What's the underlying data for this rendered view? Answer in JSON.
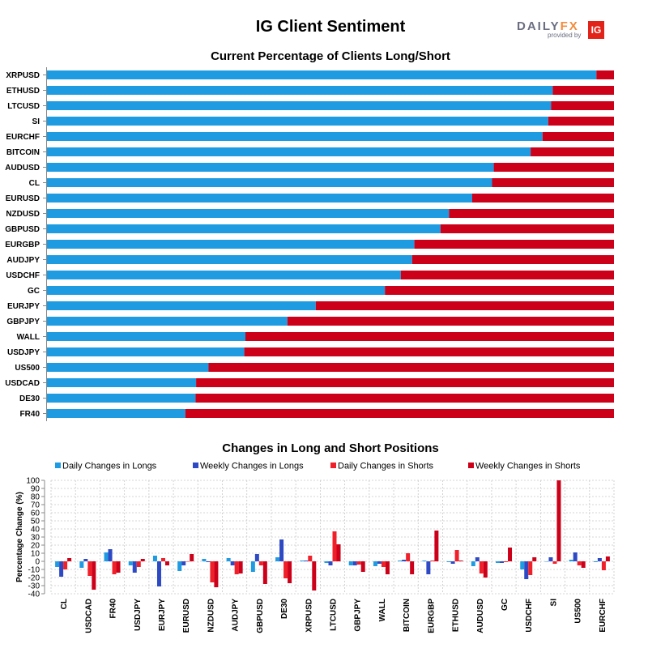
{
  "header": {
    "title": "IG Client Sentiment",
    "logo_main": "DAILY",
    "logo_accent": "FX",
    "logo_sub": "provided by",
    "logo_box": "IG"
  },
  "colors": {
    "long": "#1f9be2",
    "short": "#cc0019",
    "daily_longs": "#1f9be2",
    "weekly_longs": "#2e49c4",
    "daily_shorts": "#f0202a",
    "weekly_shorts": "#cc0019"
  },
  "chart_data": [
    {
      "type": "bar",
      "orientation": "horizontal",
      "stacked": true,
      "title": "Current Percentage of Clients Long/Short",
      "categories": [
        "XRPUSD",
        "ETHUSD",
        "LTCUSD",
        "SI",
        "EURCHF",
        "BITCOIN",
        "AUDUSD",
        "CL",
        "EURUSD",
        "NZDUSD",
        "GBPUSD",
        "EURGBP",
        "AUDJPY",
        "USDCHF",
        "GC",
        "EURJPY",
        "GBPJPY",
        "WALL",
        "USDJPY",
        "US500",
        "USDCAD",
        "DE30",
        "FR40"
      ],
      "series": [
        {
          "values": [
            96.9,
            89.2,
            88.9,
            88.4,
            87.4,
            85.3,
            78.8,
            78.5,
            75.0,
            70.9,
            69.4,
            64.8,
            64.4,
            62.4,
            59.6,
            47.4,
            42.4,
            35.0,
            34.8,
            28.5,
            26.3,
            26.2,
            24.4
          ]
        },
        {
          "values": [
            3.1,
            10.8,
            11.1,
            11.6,
            12.6,
            14.7,
            21.2,
            21.5,
            25.0,
            29.1,
            30.6,
            35.2,
            35.6,
            37.6,
            40.4,
            52.6,
            57.6,
            65.0,
            65.2,
            71.5,
            73.7,
            73.8,
            75.6
          ]
        }
      ],
      "xlim": [
        0,
        100
      ],
      "grid": false
    },
    {
      "type": "bar",
      "title": "Changes in Long and Short Positions",
      "ylabel": "Percentage Change (%)",
      "ylim": [
        -40,
        100
      ],
      "yticks": [
        -40,
        -30,
        -20,
        -10,
        0,
        10,
        20,
        30,
        40,
        50,
        60,
        70,
        80,
        90,
        100
      ],
      "grid": true,
      "legend_position": "top",
      "categories": [
        "CL",
        "USDCAD",
        "FR40",
        "USDJPY",
        "EURJPY",
        "EURUSD",
        "NZDUSD",
        "AUDJPY",
        "GBPUSD",
        "DE30",
        "XRPUSD",
        "LTCUSD",
        "GBPJPY",
        "WALL",
        "BITCOIN",
        "EURGBP",
        "ETHUSD",
        "AUDUSD",
        "GC",
        "USDCHF",
        "SI",
        "US500",
        "EURCHF"
      ],
      "series": [
        {
          "name": "Daily Changes in Longs",
          "values": [
            -7,
            -8,
            11,
            -5,
            7,
            -12,
            3,
            4,
            -13,
            5,
            1,
            -2,
            -5,
            -6,
            1,
            1,
            -1,
            -6,
            -2,
            -10,
            0,
            2,
            -1
          ]
        },
        {
          "name": "Weekly Changes in Longs",
          "values": [
            -19,
            3,
            15,
            -14,
            -31,
            -5,
            -1,
            -5,
            9,
            27,
            1,
            -5,
            -5,
            -3,
            2,
            -16,
            -3,
            5,
            -2,
            -22,
            5,
            11,
            4
          ]
        },
        {
          "name": "Daily Changes in Shorts",
          "values": [
            -10,
            -18,
            -16,
            -7,
            4,
            0,
            -26,
            -16,
            -5,
            -21,
            7,
            37,
            -4,
            -7,
            10,
            1,
            14,
            -15,
            -1,
            -17,
            -3,
            -5,
            -11
          ]
        },
        {
          "name": "Weekly Changes in Shorts",
          "values": [
            4,
            -35,
            -14,
            3,
            -5,
            9,
            -32,
            -15,
            -28,
            -27,
            -36,
            21,
            -13,
            -16,
            -16,
            38,
            1,
            -20,
            17,
            5,
            100,
            -8,
            6
          ]
        }
      ]
    }
  ]
}
